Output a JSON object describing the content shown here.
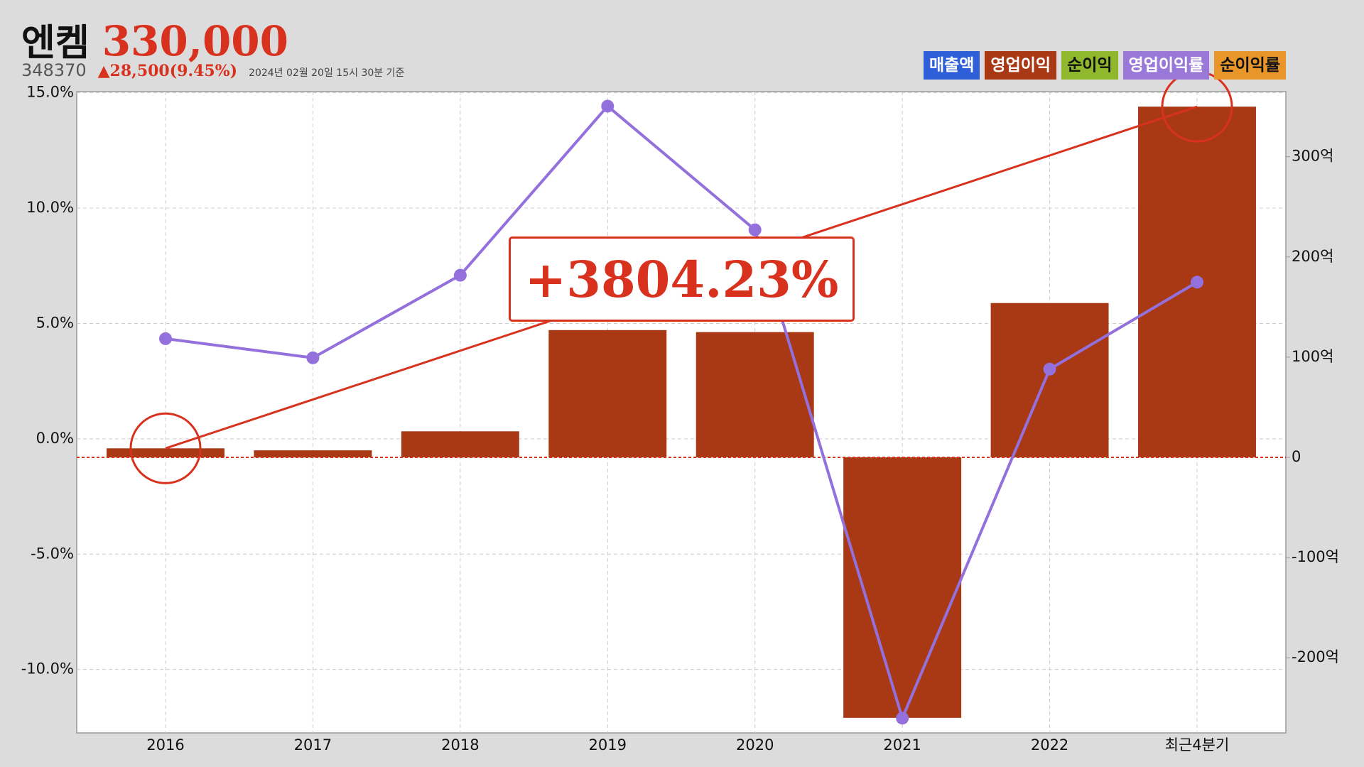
{
  "chart_data": {
    "type": "bar-line",
    "title": "엔켐",
    "price": "330,000",
    "code": "348370",
    "change": "▲28,500(9.45%)",
    "date": "2024년 02월 20일 15시 30분 기준",
    "annotation": "+3804.23%",
    "legend_items": [
      {
        "label": "매출액",
        "color": "#2f5fd8",
        "text_color": "#ffffff"
      },
      {
        "label": "영업이익",
        "color": "#a93815",
        "text_color": "#ffffff"
      },
      {
        "label": "순이익",
        "color": "#8fb82c",
        "text_color": "#111111"
      },
      {
        "label": "영업이익률",
        "color": "#9a78d8",
        "text_color": "#ffffff"
      },
      {
        "label": "순이익률",
        "color": "#e8962a",
        "text_color": "#111111"
      }
    ],
    "categories": [
      "2016",
      "2017",
      "2018",
      "2019",
      "2020",
      "2021",
      "2022",
      "최근4분기"
    ],
    "series": [
      {
        "name": "영업이익",
        "kind": "bar",
        "axis": "y2",
        "color": "#a93815",
        "values": [
          9,
          7,
          26,
          127,
          125,
          -260,
          154,
          350
        ]
      },
      {
        "name": "영업이익률",
        "kind": "line",
        "axis": "y",
        "color": "#9370db",
        "values": [
          4.34,
          3.51,
          7.09,
          14.42,
          9.06,
          -12.11,
          3.02,
          6.79
        ]
      }
    ],
    "ylim": [
      -12.75,
      15.05
    ],
    "yticks": [
      {
        "value": -10,
        "label": "-10.0%"
      },
      {
        "value": -5,
        "label": "-5.0%"
      },
      {
        "value": 0,
        "label": "0.0%"
      },
      {
        "value": 5,
        "label": "5.0%"
      },
      {
        "value": 10,
        "label": "10.0%"
      },
      {
        "value": 15,
        "label": "15.0%"
      }
    ],
    "y2lim": [
      -275,
      365
    ],
    "y2ticks": [
      {
        "value": -200,
        "label": "-200억"
      },
      {
        "value": -100,
        "label": "-100억"
      },
      0,
      {
        "value": 100,
        "label": "100억"
      },
      {
        "value": 200,
        "label": "200억"
      },
      {
        "value": 300,
        "label": "300억"
      }
    ],
    "grid": true
  }
}
